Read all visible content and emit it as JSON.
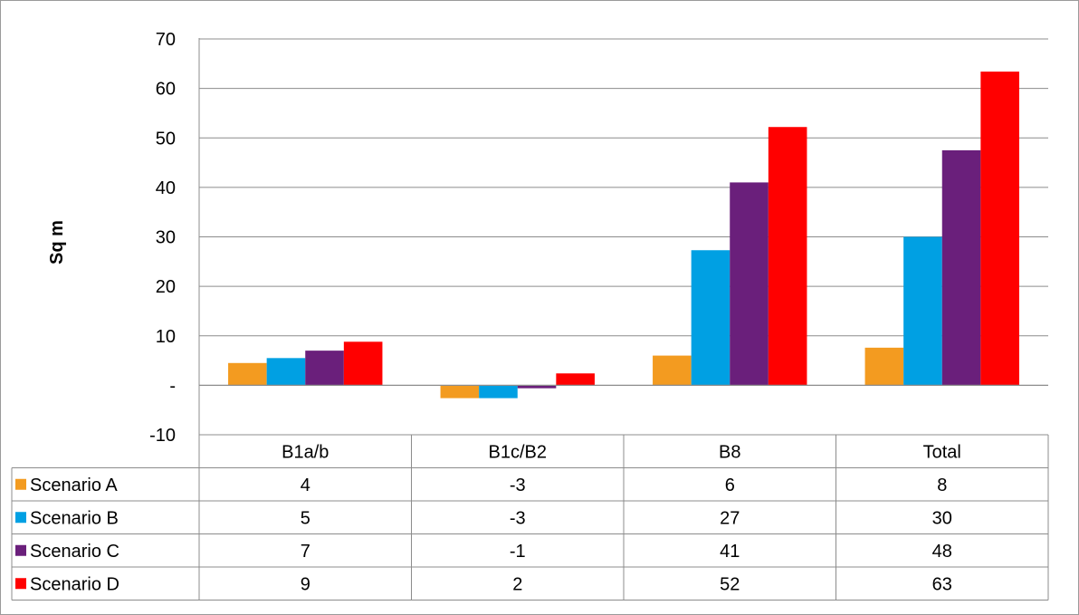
{
  "chart_data": {
    "type": "bar",
    "ylabel": "Sq m",
    "ylim": [
      -10,
      70
    ],
    "yticks": [
      "-10",
      "-",
      "10",
      "20",
      "30",
      "40",
      "50",
      "60",
      "70"
    ],
    "grid": true,
    "legend": "data-table",
    "categories": [
      "B1a/b",
      "B1c/B2",
      "B8",
      "Total"
    ],
    "series": [
      {
        "name": "Scenario A",
        "color": "#f39b20",
        "values": [
          4.5,
          -2.6,
          6.0,
          7.6
        ],
        "labels": [
          "4",
          "-3",
          "6",
          "8"
        ]
      },
      {
        "name": "Scenario B",
        "color": "#00a0e3",
        "values": [
          5.5,
          -2.6,
          27.3,
          30.0
        ],
        "labels": [
          "5",
          "-3",
          "27",
          "30"
        ]
      },
      {
        "name": "Scenario C",
        "color": "#6a1f7b",
        "values": [
          7.0,
          -0.6,
          41.0,
          47.5
        ],
        "labels": [
          "7",
          "-1",
          "41",
          "48"
        ]
      },
      {
        "name": "Scenario D",
        "color": "#ff0000",
        "values": [
          8.8,
          2.4,
          52.2,
          63.4
        ],
        "labels": [
          "9",
          "2",
          "52",
          "63"
        ]
      }
    ]
  }
}
